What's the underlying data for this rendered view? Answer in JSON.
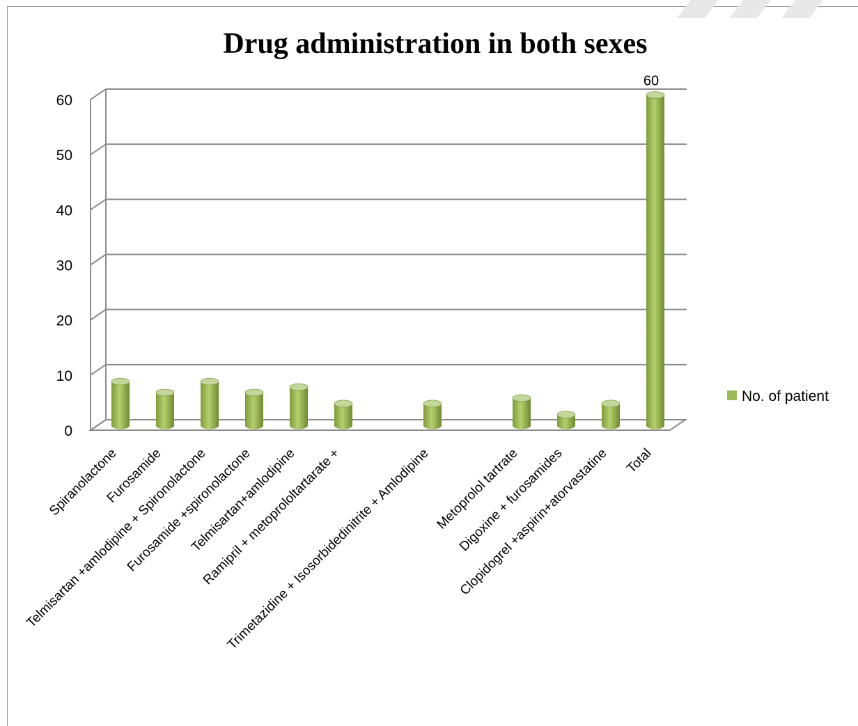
{
  "chart_data": {
    "type": "bar",
    "title": "Drug administration in both sexes",
    "categories": [
      "Spiranolactone",
      "Furosamide",
      "Telmisartan +amlodipine + Spironolactone",
      "Furosamide +spironolactone",
      "Telmisartan+amlodipine",
      "Ramipril + metoprololtartarate +",
      "",
      "Trimetazidine + Isosorbidedinitrite + Amlodipine",
      "",
      "Metoprolol tartrate",
      "Digoxine + furosamides",
      "Clopidogrel +aspirin+atorvastatine",
      "Total"
    ],
    "series": [
      {
        "name": "No. of patient",
        "values": [
          8,
          6,
          8,
          6,
          7,
          4,
          null,
          4,
          null,
          5,
          2,
          4,
          60
        ]
      }
    ],
    "data_labels": [
      {
        "category": "Total",
        "text": "60"
      }
    ],
    "ylim": [
      0,
      60
    ],
    "yticks": [
      "0",
      "10",
      "20",
      "30",
      "40",
      "50",
      "60"
    ],
    "grid": true,
    "legend_position": "right",
    "style_3d": true,
    "colors": {
      "bar_main": "#9bbb59",
      "bar_light": "#c3d69b",
      "bar_dark": "#6f8a2f",
      "gridline": "#8c8c8c",
      "axis": "#8c8c8c"
    }
  }
}
